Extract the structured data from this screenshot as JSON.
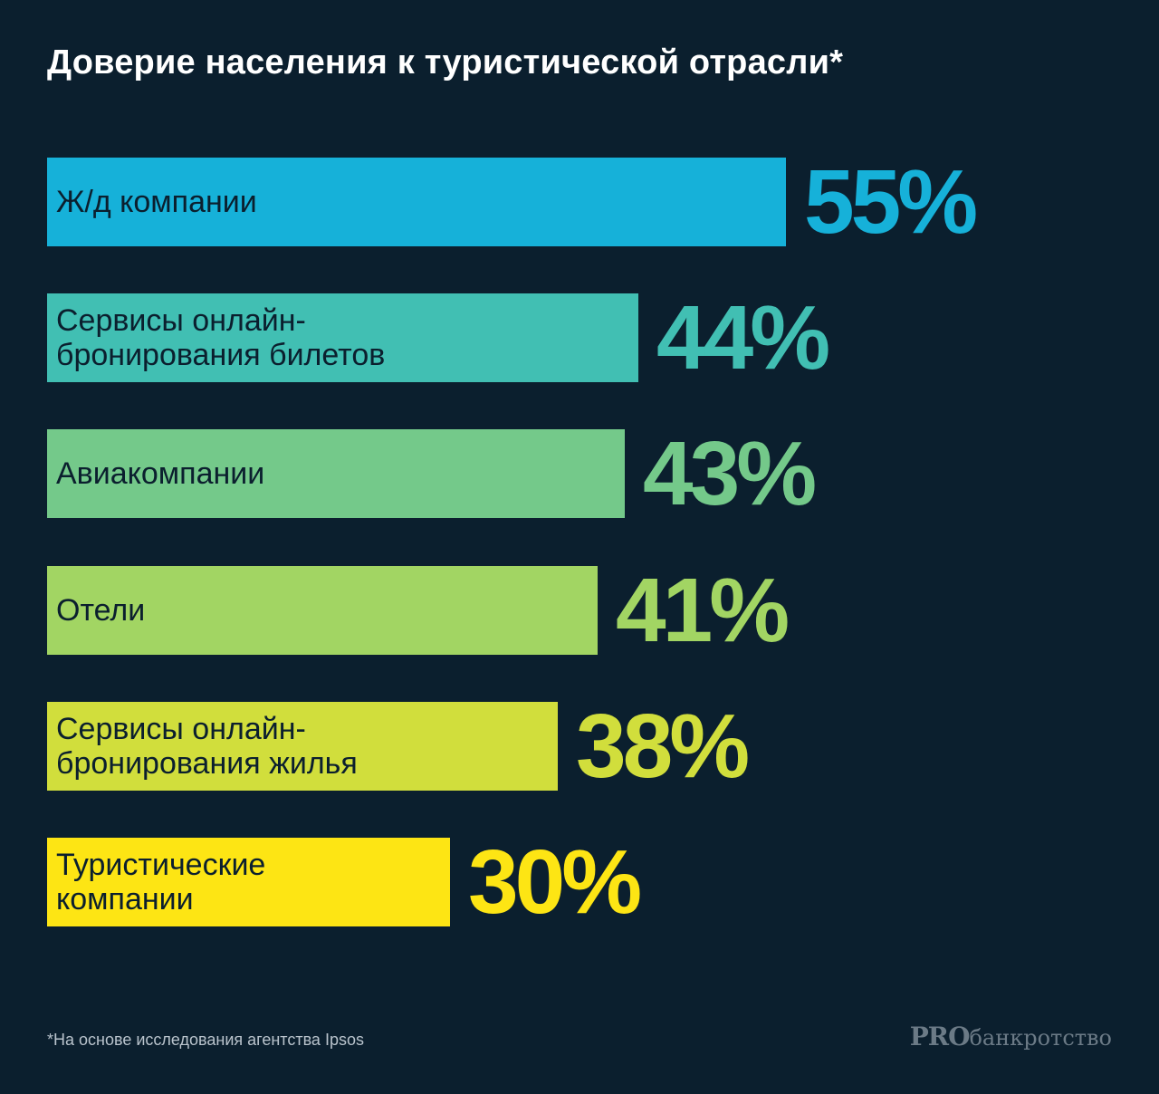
{
  "chart_data": {
    "type": "bar",
    "orientation": "horizontal",
    "title": "Доверие населения к туристической отрасли*",
    "value_unit": "%",
    "categories": [
      "Ж/д компании",
      "Сервисы онлайн-\nбронирования билетов",
      "Авиакомпании",
      "Отели",
      "Сервисы онлайн-\nбронирования жилья",
      "Туристические\nкомпании"
    ],
    "values": [
      55,
      44,
      43,
      41,
      38,
      30
    ],
    "value_labels": [
      "55%",
      "44%",
      "43%",
      "41%",
      "38%",
      "30%"
    ],
    "colors": [
      "#16b1d9",
      "#41bfb3",
      "#74c98a",
      "#a2d563",
      "#d1de3c",
      "#fde514"
    ],
    "grid": false,
    "legend": "none"
  },
  "footnote": "*На основе исследования агентства Ipsos",
  "brand": {
    "strong": "PRO",
    "light": "банкротство"
  },
  "colors": {
    "background": "#0b1f2e",
    "text": "#ffffff",
    "label_text": "#0b1f2e"
  }
}
